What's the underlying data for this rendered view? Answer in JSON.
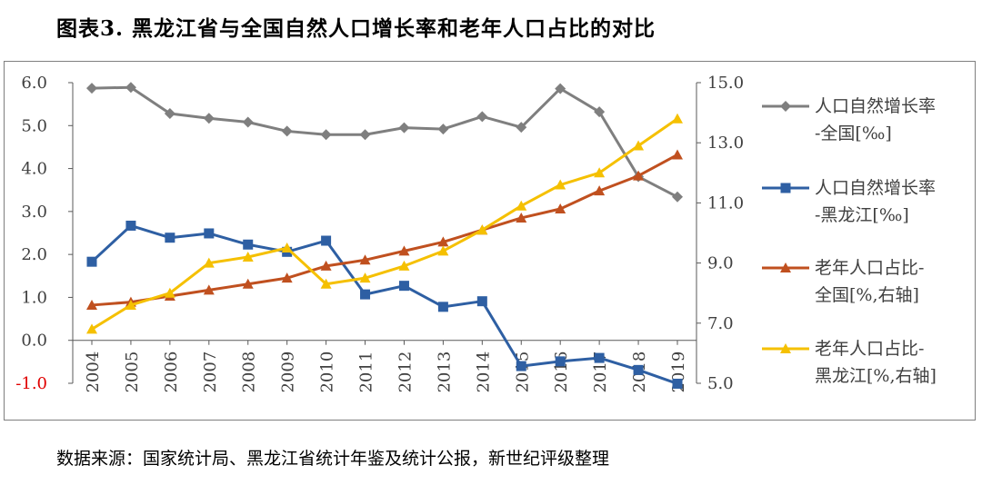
{
  "figure_title": "图表3. 黑龙江省与全国自然人口增长率和老年人口占比的对比",
  "source_note": "数据来源：国家统计局、黑龙江省统计年鉴及统计公报，新世纪评级整理",
  "colors": {
    "gray": "#7f7f7f",
    "blue": "#2e5fa3",
    "orange": "#c0501f",
    "yellow": "#f5c000",
    "negative_tick": "#e00000"
  },
  "chart_data": {
    "type": "line",
    "categories": [
      "2004",
      "2005",
      "2006",
      "2007",
      "2008",
      "2009",
      "2010",
      "2011",
      "2012",
      "2013",
      "2014",
      "2015",
      "2016",
      "2017",
      "2018",
      "2019"
    ],
    "left_axis": {
      "ylim": [
        -1.0,
        6.0
      ],
      "ticks": [
        "6.0",
        "5.0",
        "4.0",
        "3.0",
        "2.0",
        "1.0",
        "0.0",
        "-1.0"
      ],
      "tick_values": [
        6,
        5,
        4,
        3,
        2,
        1,
        0,
        -1
      ]
    },
    "right_axis": {
      "ylim": [
        5.0,
        15.0
      ],
      "ticks": [
        "15.0",
        "13.0",
        "11.0",
        "9.0",
        "7.0",
        "5.0"
      ],
      "tick_values": [
        15,
        13,
        11,
        9,
        7,
        5
      ]
    },
    "series": [
      {
        "name": "人口自然增长率-全国[‰]",
        "legend_lines": [
          "人口自然增长率",
          "-全国[‰]"
        ],
        "axis": "left",
        "color": "#7f7f7f",
        "marker": "diamond",
        "values": [
          5.87,
          5.89,
          5.28,
          5.17,
          5.08,
          4.87,
          4.79,
          4.79,
          4.95,
          4.92,
          5.21,
          4.96,
          5.86,
          5.32,
          3.81,
          3.34
        ]
      },
      {
        "name": "人口自然增长率-黑龙江[‰]",
        "legend_lines": [
          "人口自然增长率",
          "-黑龙江[‰]"
        ],
        "axis": "left",
        "color": "#2e5fa3",
        "marker": "square",
        "values": [
          1.83,
          2.67,
          2.39,
          2.49,
          2.23,
          2.06,
          2.32,
          1.07,
          1.27,
          0.78,
          0.91,
          -0.6,
          -0.49,
          -0.41,
          -0.69,
          -1.01
        ]
      },
      {
        "name": "老年人口占比-全国[%,右轴]",
        "legend_lines": [
          "老年人口占比-",
          "全国[%,右轴]"
        ],
        "axis": "right",
        "color": "#c0501f",
        "marker": "triangle",
        "values": [
          7.6,
          7.7,
          7.9,
          8.1,
          8.3,
          8.5,
          8.9,
          9.1,
          9.4,
          9.7,
          10.1,
          10.5,
          10.8,
          11.4,
          11.9,
          12.6
        ]
      },
      {
        "name": "老年人口占比-黑龙江[%,右轴]",
        "legend_lines": [
          "老年人口占比-",
          "黑龙江[%,右轴]"
        ],
        "axis": "right",
        "color": "#f5c000",
        "marker": "triangle",
        "values": [
          6.8,
          7.6,
          8.0,
          9.0,
          9.2,
          9.5,
          8.3,
          8.5,
          8.9,
          9.4,
          10.1,
          10.9,
          11.6,
          12.0,
          12.9,
          13.8
        ]
      }
    ]
  }
}
